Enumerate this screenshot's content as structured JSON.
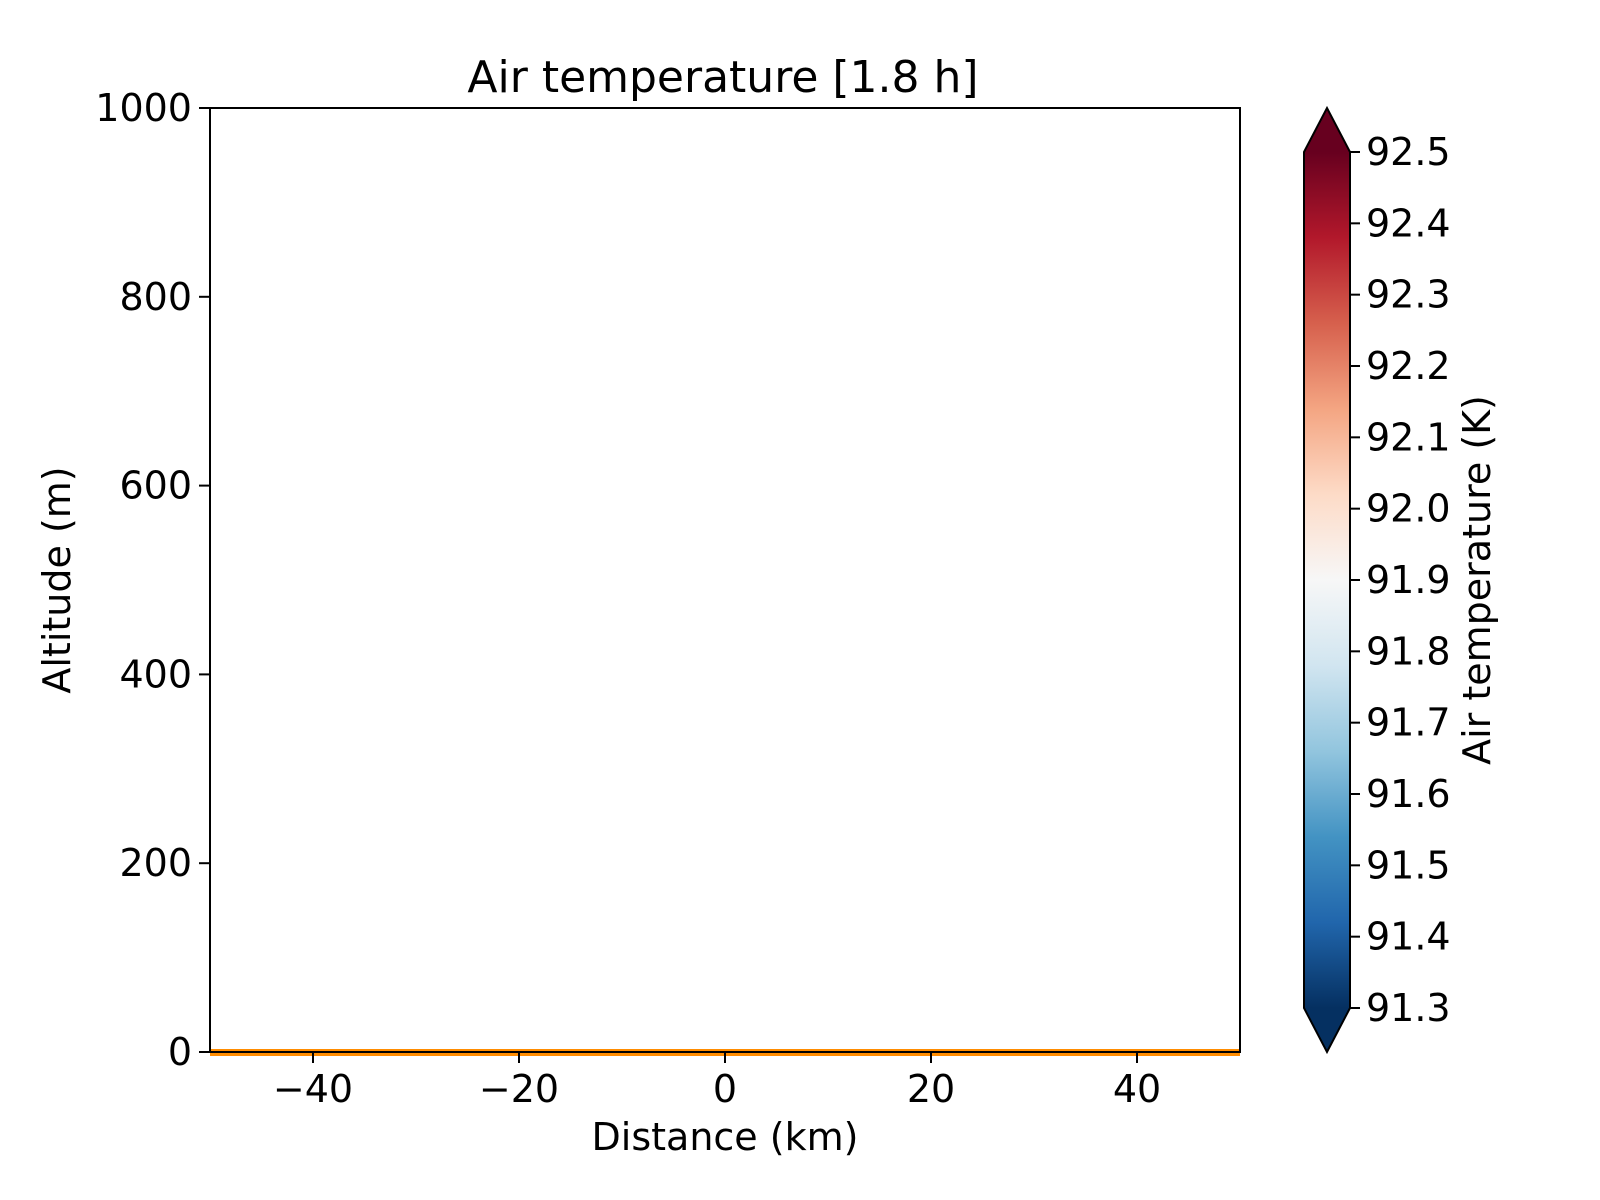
{
  "chart_data": {
    "type": "heatmap",
    "title": "Air temperature [1.8 h]",
    "xlabel": "Distance (km)",
    "ylabel": "Altitude (m)",
    "xlim": [
      -50,
      50
    ],
    "ylim": [
      0,
      1000
    ],
    "x_ticks": [
      -40,
      -20,
      0,
      20,
      40
    ],
    "x_tick_labels": [
      "−40",
      "−20",
      "0",
      "20",
      "40"
    ],
    "y_ticks": [
      0,
      200,
      400,
      600,
      800,
      1000
    ],
    "y_tick_labels": [
      "0",
      "200",
      "400",
      "600",
      "800",
      "1000"
    ],
    "grid": false,
    "surface": {
      "altitude": 0,
      "color": "#ff8c00"
    },
    "colorbar": {
      "label": "Air temperature (K)",
      "colormap": "RdBu_r",
      "range": [
        91.3,
        92.5
      ],
      "extend": "both",
      "ticks": [
        91.3,
        91.4,
        91.5,
        91.6,
        91.7,
        91.8,
        91.9,
        92.0,
        92.1,
        92.2,
        92.3,
        92.4,
        92.5
      ],
      "tick_labels": [
        "91.3",
        "91.4",
        "91.5",
        "91.6",
        "91.7",
        "91.8",
        "91.9",
        "92.0",
        "92.1",
        "92.2",
        "92.3",
        "92.4",
        "92.5"
      ],
      "low_color": "#053061",
      "high_color": "#67001f"
    }
  }
}
